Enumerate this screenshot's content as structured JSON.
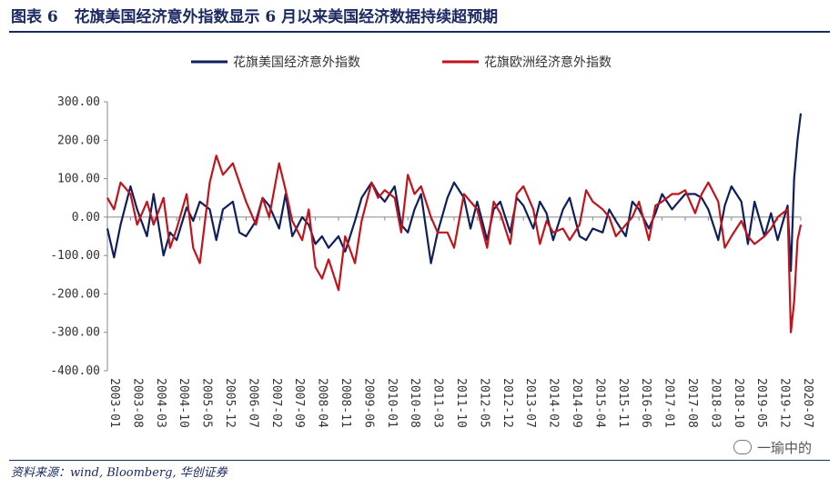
{
  "header": {
    "figure_label": "图表 6",
    "title": "花旗美国经济意外指数显示 6 月以来美国经济数据持续超预期"
  },
  "footer": {
    "source": "资料来源：wind, Bloomberg, 华创证券",
    "watermark": "一瑜中的"
  },
  "colors": {
    "us": "#0f1f5c",
    "eu": "#c0141c",
    "accent": "#1b2a63"
  },
  "chart_data": {
    "type": "line",
    "title": "",
    "xlabel": "",
    "ylabel": "",
    "ylim": [
      -400,
      300
    ],
    "yticks": [
      "300.00",
      "200.00",
      "100.00",
      "0.00",
      "-100.00",
      "-200.00",
      "-300.00",
      "-400.00"
    ],
    "yticks_values": [
      300,
      200,
      100,
      0,
      -100,
      -200,
      -300,
      -400
    ],
    "xticks": [
      "2003-01",
      "2003-08",
      "2004-03",
      "2004-10",
      "2005-05",
      "2005-12",
      "2006-07",
      "2007-02",
      "2007-09",
      "2008-04",
      "2008-11",
      "2009-06",
      "2010-01",
      "2010-08",
      "2011-03",
      "2011-10",
      "2012-05",
      "2012-12",
      "2013-07",
      "2014-02",
      "2014-09",
      "2015-04",
      "2015-11",
      "2016-06",
      "2017-01",
      "2017-08",
      "2018-03",
      "2018-10",
      "2019-05",
      "2019-12",
      "2020-07"
    ],
    "legend_position": "top",
    "grid": false,
    "series": [
      {
        "name": "花旗美国经济意外指数",
        "x": [
          "2003-01",
          "2003-03",
          "2003-05",
          "2003-08",
          "2003-10",
          "2004-01",
          "2004-03",
          "2004-06",
          "2004-08",
          "2004-10",
          "2005-01",
          "2005-03",
          "2005-05",
          "2005-08",
          "2005-10",
          "2005-12",
          "2006-03",
          "2006-05",
          "2006-07",
          "2006-10",
          "2006-12",
          "2007-02",
          "2007-05",
          "2007-07",
          "2007-09",
          "2007-12",
          "2008-02",
          "2008-04",
          "2008-06",
          "2008-08",
          "2008-11",
          "2009-01",
          "2009-04",
          "2009-06",
          "2009-09",
          "2009-11",
          "2010-01",
          "2010-04",
          "2010-06",
          "2010-08",
          "2010-10",
          "2010-12",
          "2011-03",
          "2011-05",
          "2011-08",
          "2011-10",
          "2012-01",
          "2012-03",
          "2012-05",
          "2012-08",
          "2012-10",
          "2012-12",
          "2013-03",
          "2013-05",
          "2013-07",
          "2013-10",
          "2013-12",
          "2014-02",
          "2014-04",
          "2014-07",
          "2014-09",
          "2014-12",
          "2015-02",
          "2015-04",
          "2015-07",
          "2015-09",
          "2015-11",
          "2016-02",
          "2016-04",
          "2016-06",
          "2016-09",
          "2016-11",
          "2017-01",
          "2017-04",
          "2017-06",
          "2017-08",
          "2017-11",
          "2018-01",
          "2018-03",
          "2018-06",
          "2018-08",
          "2018-10",
          "2019-01",
          "2019-03",
          "2019-05",
          "2019-08",
          "2019-10",
          "2019-12",
          "2020-03",
          "2020-04",
          "2020-05",
          "2020-06",
          "2020-07"
        ],
        "values": [
          -30,
          -105,
          -20,
          80,
          20,
          -50,
          60,
          -100,
          -40,
          -60,
          25,
          -10,
          40,
          20,
          -60,
          20,
          40,
          -40,
          -50,
          -10,
          50,
          30,
          -30,
          60,
          -50,
          0,
          -20,
          -70,
          -50,
          -80,
          -50,
          -90,
          -10,
          50,
          90,
          60,
          40,
          80,
          -20,
          -40,
          20,
          60,
          -120,
          -40,
          50,
          90,
          50,
          -30,
          40,
          -60,
          20,
          40,
          -40,
          50,
          30,
          -30,
          40,
          10,
          -60,
          20,
          50,
          -50,
          -60,
          -30,
          -40,
          20,
          -10,
          -50,
          40,
          20,
          -30,
          10,
          60,
          20,
          40,
          60,
          60,
          50,
          20,
          -60,
          30,
          80,
          40,
          -70,
          40,
          -50,
          10,
          -60,
          30,
          -140,
          100,
          200,
          270
        ]
      },
      {
        "name": "花旗欧洲经济意外指数",
        "x": [
          "2003-01",
          "2003-03",
          "2003-05",
          "2003-08",
          "2003-10",
          "2004-01",
          "2004-03",
          "2004-06",
          "2004-08",
          "2004-10",
          "2005-01",
          "2005-03",
          "2005-05",
          "2005-08",
          "2005-10",
          "2005-12",
          "2006-03",
          "2006-05",
          "2006-07",
          "2006-10",
          "2006-12",
          "2007-02",
          "2007-05",
          "2007-07",
          "2007-09",
          "2007-12",
          "2008-02",
          "2008-04",
          "2008-06",
          "2008-08",
          "2008-11",
          "2009-01",
          "2009-04",
          "2009-06",
          "2009-09",
          "2009-11",
          "2010-01",
          "2010-04",
          "2010-06",
          "2010-08",
          "2010-10",
          "2010-12",
          "2011-03",
          "2011-05",
          "2011-08",
          "2011-10",
          "2012-01",
          "2012-03",
          "2012-05",
          "2012-08",
          "2012-10",
          "2012-12",
          "2013-03",
          "2013-05",
          "2013-07",
          "2013-10",
          "2013-12",
          "2014-02",
          "2014-04",
          "2014-07",
          "2014-09",
          "2014-12",
          "2015-02",
          "2015-04",
          "2015-07",
          "2015-09",
          "2015-11",
          "2016-02",
          "2016-04",
          "2016-06",
          "2016-09",
          "2016-11",
          "2017-01",
          "2017-04",
          "2017-06",
          "2017-08",
          "2017-11",
          "2018-01",
          "2018-03",
          "2018-06",
          "2018-08",
          "2018-10",
          "2019-01",
          "2019-03",
          "2019-05",
          "2019-08",
          "2019-10",
          "2019-12",
          "2020-03",
          "2020-04",
          "2020-05",
          "2020-06",
          "2020-07"
        ],
        "values": [
          50,
          20,
          90,
          60,
          -20,
          40,
          -20,
          50,
          -80,
          -30,
          60,
          -80,
          -120,
          90,
          160,
          110,
          140,
          90,
          40,
          -20,
          50,
          0,
          140,
          70,
          -10,
          -60,
          20,
          -130,
          -160,
          -110,
          -190,
          -50,
          -120,
          -10,
          90,
          50,
          70,
          50,
          -40,
          110,
          60,
          80,
          0,
          -40,
          -40,
          -80,
          60,
          40,
          20,
          -80,
          40,
          10,
          -70,
          60,
          80,
          20,
          -70,
          -10,
          -40,
          -30,
          -60,
          -20,
          70,
          40,
          20,
          0,
          -50,
          -20,
          0,
          40,
          -60,
          30,
          40,
          60,
          60,
          70,
          10,
          60,
          90,
          40,
          -80,
          -50,
          -10,
          -50,
          -70,
          -50,
          -30,
          0,
          20,
          -300,
          -220,
          -60,
          -20
        ]
      }
    ]
  }
}
